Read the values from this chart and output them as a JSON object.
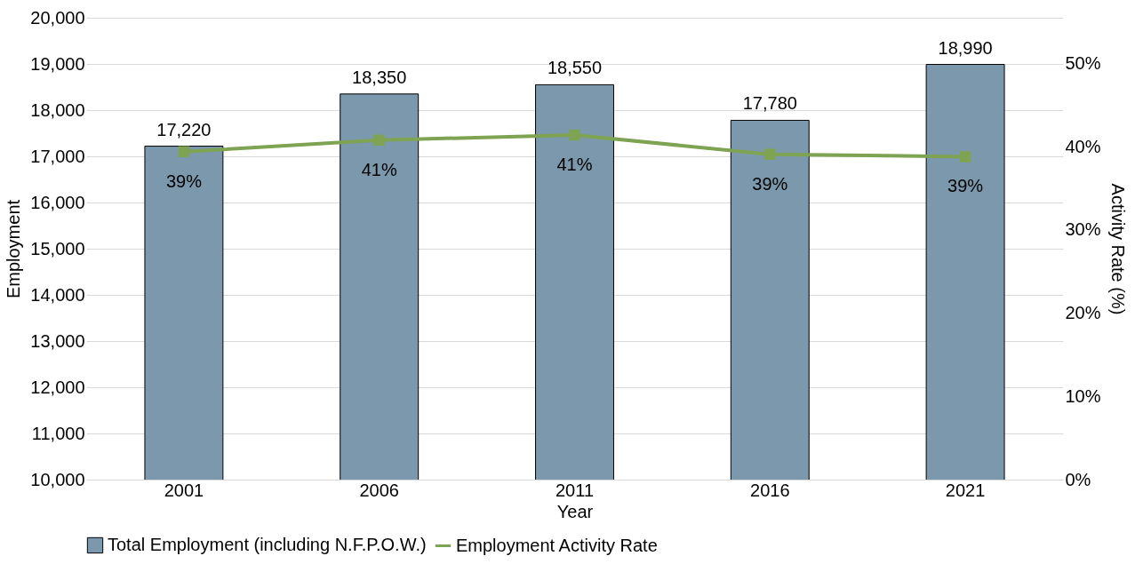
{
  "chart_data": {
    "type": "bar",
    "categories": [
      "2001",
      "2006",
      "2011",
      "2016",
      "2021"
    ],
    "xlabel": "Year",
    "ylabel": "Employment",
    "y2label": "Activity Rate (%)",
    "series": [
      {
        "name": "Total Employment (including N.F.P.O.W.)",
        "color": "#7b98ad",
        "values": [
          17220,
          18350,
          18550,
          17780,
          18990
        ],
        "value_labels": [
          "17,220",
          "18,350",
          "18,550",
          "17,780",
          "18,990"
        ]
      },
      {
        "name": "Employment Activity Rate",
        "type": "line",
        "axis": "y2",
        "color": "#7ea352",
        "marker": "square",
        "values": [
          39.4,
          40.8,
          41.4,
          39.1,
          38.8
        ],
        "value_labels": [
          "39%",
          "41%",
          "41%",
          "39%",
          "39%"
        ]
      }
    ],
    "ylim": [
      10000,
      20000
    ],
    "yticks": [
      {
        "value": 10000,
        "label": "10,000"
      },
      {
        "value": 11000,
        "label": "11,000"
      },
      {
        "value": 12000,
        "label": "12,000"
      },
      {
        "value": 13000,
        "label": "13,000"
      },
      {
        "value": 14000,
        "label": "14,000"
      },
      {
        "value": 15000,
        "label": "15,000"
      },
      {
        "value": 16000,
        "label": "16,000"
      },
      {
        "value": 17000,
        "label": "17,000"
      },
      {
        "value": 18000,
        "label": "18,000"
      },
      {
        "value": 19000,
        "label": "19,000"
      },
      {
        "value": 20000,
        "label": "20,000"
      }
    ],
    "y2lim": [
      0,
      55.5
    ],
    "y2ticks": [
      {
        "value": 0,
        "label": "0%"
      },
      {
        "value": 10,
        "label": "10%"
      },
      {
        "value": 20,
        "label": "20%"
      },
      {
        "value": 30,
        "label": "30%"
      },
      {
        "value": 40,
        "label": "40%"
      },
      {
        "value": 50,
        "label": "50%"
      }
    ],
    "grid": "y",
    "legend": "bottom"
  }
}
